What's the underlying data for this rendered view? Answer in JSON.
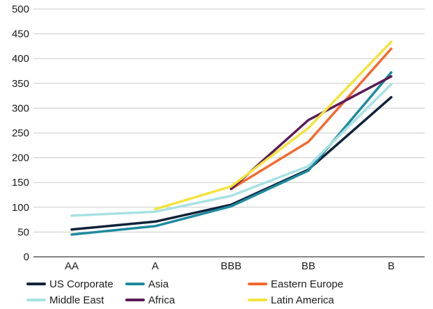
{
  "chart_data": {
    "type": "line",
    "categories": [
      "AA",
      "A",
      "BBB",
      "BB",
      "B"
    ],
    "ylim": [
      0,
      500
    ],
    "yticks": [
      0,
      50,
      100,
      150,
      200,
      250,
      300,
      350,
      400,
      450,
      500
    ],
    "grid": true,
    "legend_position": "bottom",
    "series": [
      {
        "name": "US Corporate",
        "color": "#0f2238",
        "values": [
          55,
          71,
          105,
          176,
          322
        ]
      },
      {
        "name": "Asia",
        "color": "#1f8a9e",
        "values": [
          45,
          62,
          102,
          174,
          372
        ]
      },
      {
        "name": "Eastern Europe",
        "color": "#f26a2e",
        "values": [
          null,
          null,
          137,
          232,
          420
        ]
      },
      {
        "name": "Middle East",
        "color": "#a8e1e3",
        "values": [
          83,
          91,
          123,
          183,
          348
        ]
      },
      {
        "name": "Africa",
        "color": "#5b1a57",
        "values": [
          null,
          null,
          137,
          276,
          364
        ]
      },
      {
        "name": "Latin America",
        "color": "#f3e33c",
        "values": [
          null,
          96,
          142,
          260,
          434
        ]
      }
    ]
  }
}
